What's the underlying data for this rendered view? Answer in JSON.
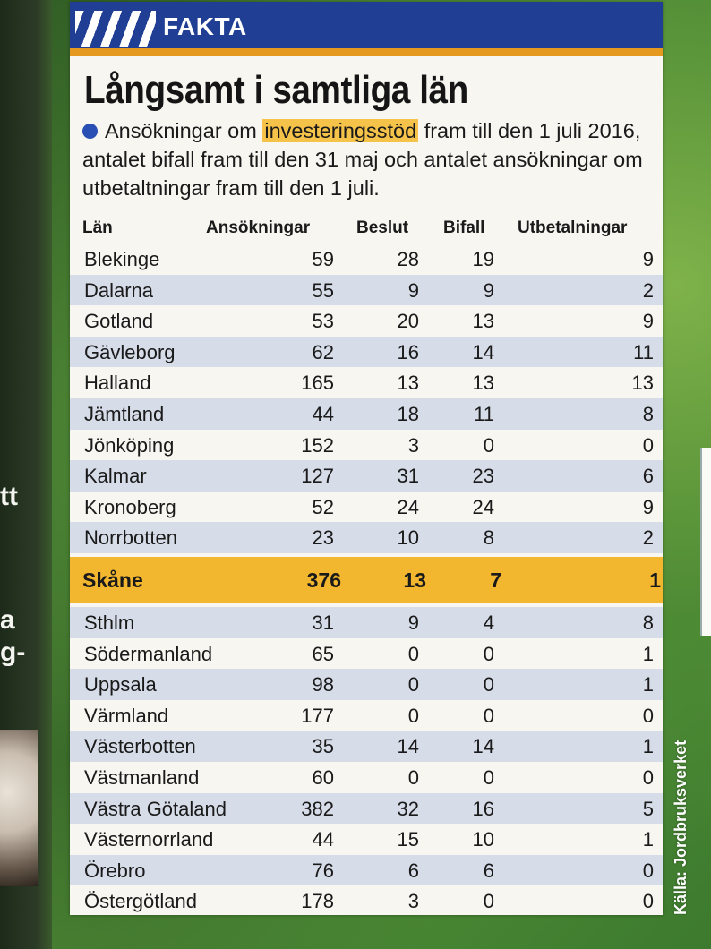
{
  "banner": {
    "label": "FAKTA"
  },
  "headline": "Långsamt i samtliga län",
  "intro": {
    "before": "Ansökningar om ",
    "highlight": "investeringsstöd",
    "after": " fram till den 1 juli 2016, antalet bifall fram till den 31 maj och antalet ansökningar om utbetaltningar fram till den 1 juli."
  },
  "table": {
    "headers": [
      "Län",
      "Ansökningar",
      "Beslut",
      "Bifall",
      "Utbetalningar"
    ],
    "rows": [
      [
        "Blekinge",
        "59",
        "28",
        "19",
        "9"
      ],
      [
        "Dalarna",
        "55",
        "9",
        "9",
        "2"
      ],
      [
        "Gotland",
        "53",
        "20",
        "13",
        "9"
      ],
      [
        "Gävleborg",
        "62",
        "16",
        "14",
        "11"
      ],
      [
        "Halland",
        "165",
        "13",
        "13",
        "13"
      ],
      [
        "Jämtland",
        "44",
        "18",
        "11",
        "8"
      ],
      [
        "Jönköping",
        "152",
        "3",
        "0",
        "0"
      ],
      [
        "Kalmar",
        "127",
        "31",
        "23",
        "6"
      ],
      [
        "Kronoberg",
        "52",
        "24",
        "24",
        "9"
      ],
      [
        "Norrbotten",
        "23",
        "10",
        "8",
        "2"
      ],
      [
        "Skåne",
        "376",
        "13",
        "7",
        "1"
      ],
      [
        "Sthlm",
        "31",
        "9",
        "4",
        "8"
      ],
      [
        "Södermanland",
        "65",
        "0",
        "0",
        "1"
      ],
      [
        "Uppsala",
        "98",
        "0",
        "0",
        "1"
      ],
      [
        "Värmland",
        "177",
        "0",
        "0",
        "0"
      ],
      [
        "Västerbotten",
        "35",
        "14",
        "14",
        "1"
      ],
      [
        "Västmanland",
        "60",
        "0",
        "0",
        "0"
      ],
      [
        "Västra Götaland",
        "382",
        "32",
        "16",
        "5"
      ],
      [
        "Västernorrland",
        "44",
        "15",
        "10",
        "1"
      ],
      [
        "Örebro",
        "76",
        "6",
        "6",
        "0"
      ],
      [
        "Östergötland",
        "178",
        "3",
        "0",
        "0"
      ]
    ],
    "highlight_row": "Skåne"
  },
  "source": "Källa: Jordbruksverket",
  "side_fragments": [
    "tt",
    "a",
    "g-"
  ],
  "colors": {
    "banner": "#1f3e94",
    "accent": "#e59a1f",
    "highlight": "#f2b72e",
    "row_alt": "#d6dce8",
    "paper": "#f7f6f1"
  }
}
